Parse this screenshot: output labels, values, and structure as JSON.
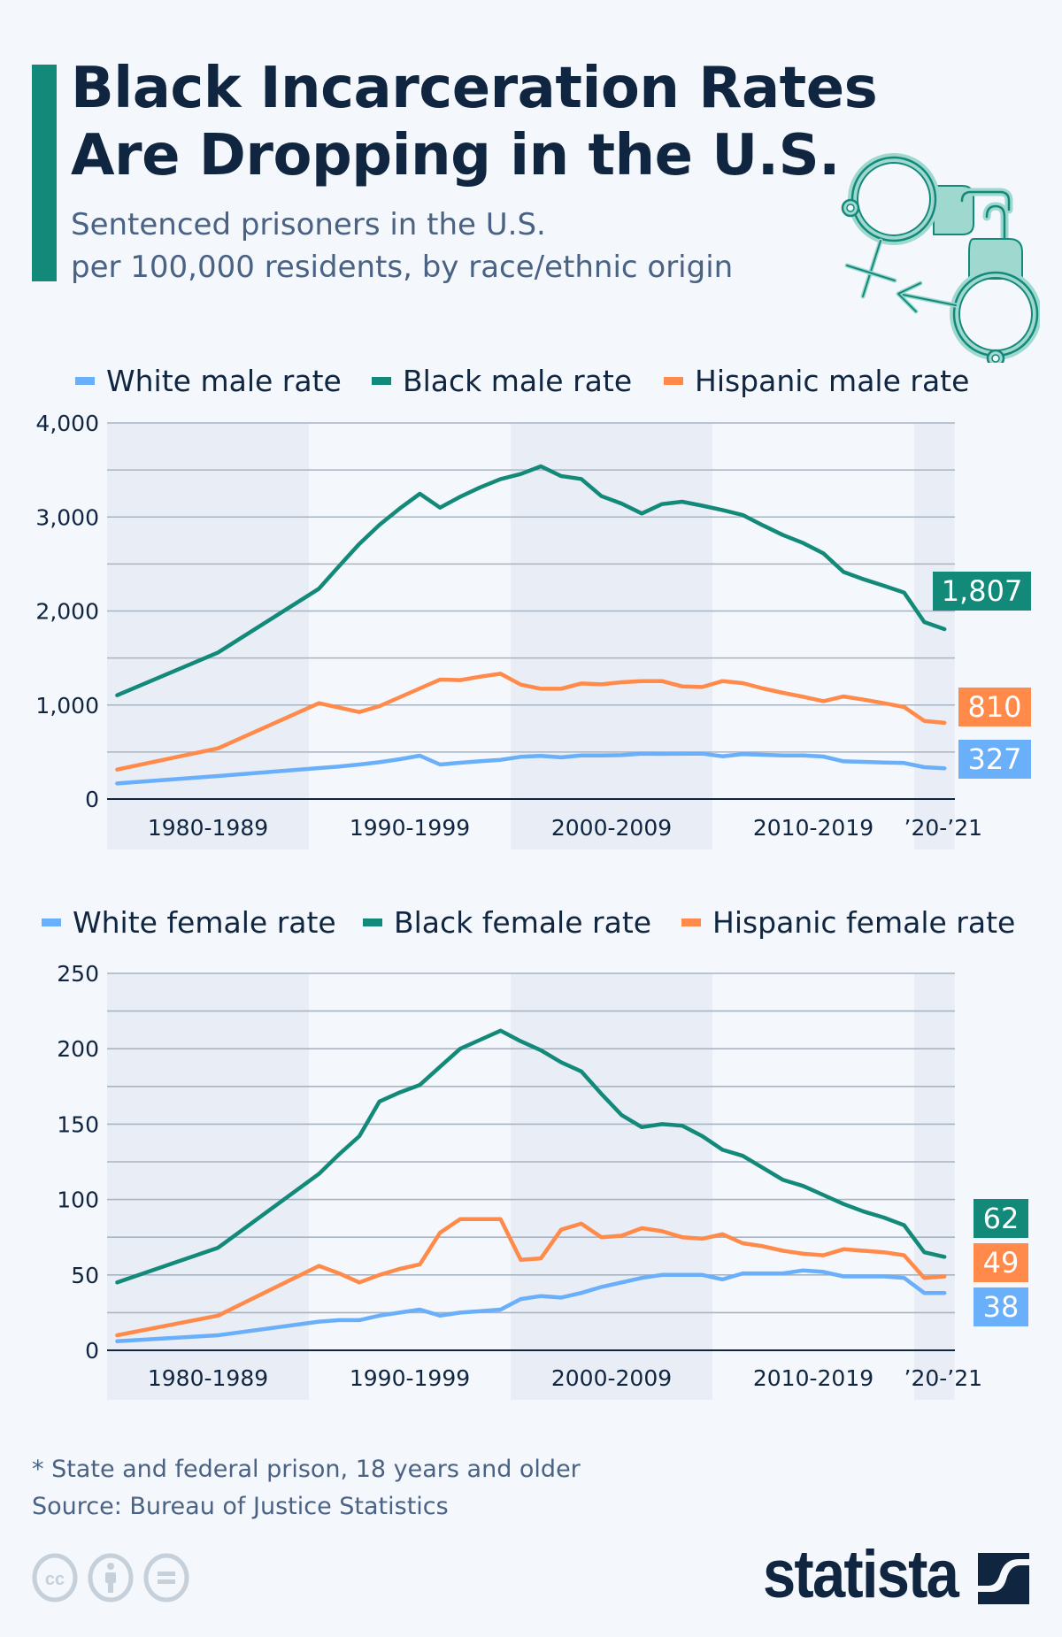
{
  "header": {
    "title_lines": [
      "Black Incarceration Rates",
      "Are Dropping in the U.S."
    ],
    "subtitle_lines": [
      "Sentenced prisoners in the U.S.",
      "per 100,000 residents, by race/ethnic origin"
    ],
    "icon": "handcuffs-gender-symbols-icon"
  },
  "colors": {
    "accent": "#138a79",
    "white_series": "#6aaffa",
    "black_series": "#138a79",
    "hispanic_series": "#ff8a4a",
    "title_text": "#0f2540",
    "subtitle_text": "#4a6283",
    "band_shade": "#e9eef6",
    "background": "#f4f7fb"
  },
  "footer": {
    "note": "* State and federal prison, 18 years and older",
    "source": "Source: Bureau of Justice Statistics",
    "license_icons": [
      "creative-commons-icon",
      "attribution-icon",
      "no-derivatives-icon"
    ],
    "brand": "statista",
    "brand_icon": "statista-logo-mark-icon"
  },
  "chart_data": [
    {
      "type": "line",
      "title": "Male sentenced prisoners per 100,000 residents",
      "xlabel": "",
      "ylabel": "",
      "ylim": [
        0,
        4000
      ],
      "yticks": [
        0,
        1000,
        2000,
        3000,
        4000
      ],
      "yticks_labels": [
        "0",
        "1,000",
        "2,000",
        "3,000",
        "4,000"
      ],
      "grid": true,
      "legend_position": "top",
      "x_groups": [
        {
          "label": "1980-1989",
          "from": 1980,
          "to": 1989,
          "shaded": true
        },
        {
          "label": "1990-1999",
          "from": 1990,
          "to": 1999,
          "shaded": false
        },
        {
          "label": "2000-2009",
          "from": 2000,
          "to": 2009,
          "shaded": true
        },
        {
          "label": "2010-2019",
          "from": 2010,
          "to": 2019,
          "shaded": false
        },
        {
          "label": "’20-’21",
          "from": 2020,
          "to": 2021,
          "shaded": true
        }
      ],
      "x": [
        1980,
        1985,
        1990,
        1991,
        1992,
        1993,
        1994,
        1995,
        1996,
        1997,
        1998,
        1999,
        2000,
        2001,
        2002,
        2003,
        2004,
        2005,
        2006,
        2007,
        2008,
        2009,
        2010,
        2011,
        2012,
        2013,
        2014,
        2015,
        2016,
        2017,
        2018,
        2019,
        2020,
        2021
      ],
      "series": [
        {
          "key": "white",
          "name": "White male rate",
          "color": "#6aaffa",
          "values": [
            166,
            245,
            329,
            345,
            367,
            392,
            424,
            461,
            367,
            386,
            402,
            417,
            449,
            458,
            443,
            464,
            464,
            467,
            483,
            480,
            483,
            483,
            455,
            477,
            471,
            464,
            464,
            452,
            401,
            395,
            389,
            383,
            339,
            327
          ],
          "end_label": "327"
        },
        {
          "key": "black",
          "name": "Black male rate",
          "color": "#138a79",
          "values": [
            1104,
            1559,
            2237,
            2478,
            2713,
            2917,
            3090,
            3247,
            3099,
            3215,
            3316,
            3403,
            3457,
            3539,
            3435,
            3404,
            3222,
            3143,
            3037,
            3137,
            3162,
            3120,
            3074,
            3021,
            2911,
            2808,
            2723,
            2613,
            2415,
            2337,
            2268,
            2196,
            1882,
            1807
          ],
          "end_label": "1,807"
        },
        {
          "key": "hispanic",
          "name": "Hispanic male rate",
          "color": "#ff8a4a",
          "values": [
            313,
            539,
            1019,
            972,
            925,
            988,
            1082,
            1176,
            1271,
            1265,
            1302,
            1333,
            1217,
            1173,
            1173,
            1229,
            1220,
            1242,
            1255,
            1255,
            1198,
            1192,
            1255,
            1233,
            1176,
            1129,
            1088,
            1041,
            1091,
            1057,
            1019,
            979,
            831,
            810
          ],
          "end_label": "810"
        }
      ]
    },
    {
      "type": "line",
      "title": "Female sentenced prisoners per 100,000 residents",
      "xlabel": "",
      "ylabel": "",
      "ylim": [
        0,
        250
      ],
      "yticks": [
        0,
        50,
        100,
        150,
        200,
        250
      ],
      "yticks_labels": [
        "0",
        "50",
        "100",
        "150",
        "200",
        "250"
      ],
      "grid": true,
      "legend_position": "top",
      "x_groups": [
        {
          "label": "1980-1989",
          "from": 1980,
          "to": 1989,
          "shaded": true
        },
        {
          "label": "1990-1999",
          "from": 1990,
          "to": 1999,
          "shaded": false
        },
        {
          "label": "2000-2009",
          "from": 2000,
          "to": 2009,
          "shaded": true
        },
        {
          "label": "2010-2019",
          "from": 2010,
          "to": 2019,
          "shaded": false
        },
        {
          "label": "’20-’21",
          "from": 2020,
          "to": 2021,
          "shaded": true
        }
      ],
      "x": [
        1980,
        1985,
        1990,
        1991,
        1992,
        1993,
        1994,
        1995,
        1996,
        1997,
        1998,
        1999,
        2000,
        2001,
        2002,
        2003,
        2004,
        2005,
        2006,
        2007,
        2008,
        2009,
        2010,
        2011,
        2012,
        2013,
        2014,
        2015,
        2016,
        2017,
        2018,
        2019,
        2020,
        2021
      ],
      "series": [
        {
          "key": "white",
          "name": "White female rate",
          "color": "#6aaffa",
          "values": [
            6,
            10,
            19,
            20,
            20,
            23,
            25,
            27,
            23,
            25,
            26,
            27,
            34,
            36,
            35,
            38,
            42,
            45,
            48,
            50,
            50,
            50,
            47,
            51,
            51,
            51,
            53,
            52,
            49,
            49,
            49,
            48,
            38,
            38
          ],
          "end_label": "38"
        },
        {
          "key": "black",
          "name": "Black female rate",
          "color": "#138a79",
          "values": [
            45,
            68,
            117,
            130,
            142,
            165,
            171,
            176,
            188,
            200,
            206,
            212,
            205,
            199,
            191,
            185,
            170,
            156,
            148,
            150,
            149,
            142,
            133,
            129,
            121,
            113,
            109,
            103,
            97,
            92,
            88,
            83,
            65,
            62
          ],
          "end_label": "62"
        },
        {
          "key": "hispanic",
          "name": "Hispanic female rate",
          "color": "#ff8a4a",
          "values": [
            10,
            23,
            56,
            51,
            45,
            50,
            54,
            57,
            78,
            87,
            87,
            87,
            60,
            61,
            80,
            84,
            75,
            76,
            81,
            79,
            75,
            74,
            77,
            71,
            69,
            66,
            64,
            63,
            67,
            66,
            65,
            63,
            48,
            49
          ],
          "end_label": "49"
        }
      ]
    }
  ]
}
